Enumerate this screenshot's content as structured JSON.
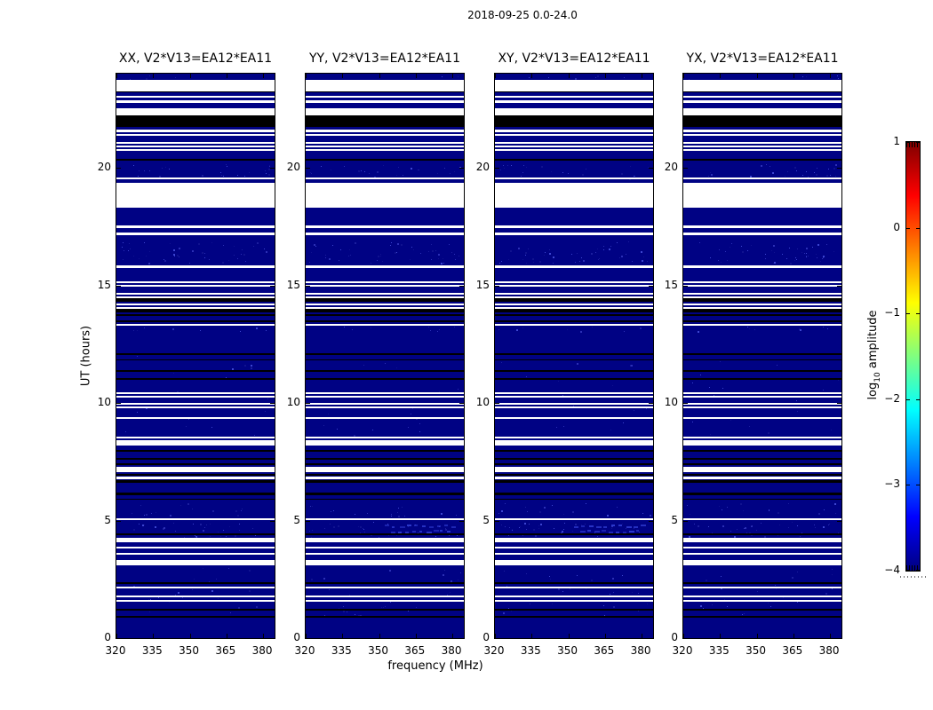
{
  "figure_title": "2018-09-25 0.0-24.0",
  "chart_data": {
    "type": "heatmap",
    "title": "2018-09-25 0.0-24.0",
    "panel_titles": [
      "XX, V2*V13=EA12*EA11",
      "YY, V2*V13=EA12*EA11",
      "XY, V2*V13=EA12*EA11",
      "YX, V2*V13=EA12*EA11"
    ],
    "xlabel": "frequency (MHz)",
    "ylabel": "UT (hours)",
    "x_range": [
      320,
      384.7
    ],
    "y_range": [
      0,
      24
    ],
    "x_ticks": [
      320,
      335,
      350,
      365,
      380
    ],
    "x_tick_labels": [
      "320",
      "335",
      "350",
      "365",
      "380"
    ],
    "y_ticks": [
      0,
      5,
      10,
      15,
      20
    ],
    "y_tick_labels": [
      "0",
      "5",
      "10",
      "15",
      "20"
    ],
    "grid": false,
    "background_value_color": "#000284",
    "flag_colors": {
      "w": "#ffffff",
      "k": "#000000"
    },
    "flagged_rows": [
      {
        "u0": 23.24,
        "u1": 23.73,
        "c": "w"
      },
      {
        "u0": 23.2,
        "u1": 23.25,
        "c": "k"
      },
      {
        "u0": 22.98,
        "u1": 23.06,
        "c": "w"
      },
      {
        "u0": 22.76,
        "u1": 22.87,
        "c": "w"
      },
      {
        "u0": 22.23,
        "u1": 22.53,
        "c": "w"
      },
      {
        "u0": 21.74,
        "u1": 22.23,
        "c": "k"
      },
      {
        "u0": 21.51,
        "u1": 21.63,
        "c": "w"
      },
      {
        "u0": 21.36,
        "u1": 21.44,
        "c": "w"
      },
      {
        "u0": 21.02,
        "u1": 21.1,
        "c": "w"
      },
      {
        "u0": 20.87,
        "u1": 20.95,
        "c": "w"
      },
      {
        "u0": 20.72,
        "u1": 20.8,
        "c": "w"
      },
      {
        "u0": 20.31,
        "u1": 20.38,
        "c": "k"
      },
      {
        "u0": 19.52,
        "u1": 19.6,
        "c": "w"
      },
      {
        "u0": 18.3,
        "u1": 19.35,
        "c": "w"
      },
      {
        "u0": 17.45,
        "u1": 17.53,
        "c": "w"
      },
      {
        "u0": 17.15,
        "u1": 17.26,
        "c": "w"
      },
      {
        "u0": 15.72,
        "u1": 15.84,
        "c": "w"
      },
      {
        "u0": 15.08,
        "u1": 15.16,
        "c": "w"
      },
      {
        "u0": 14.93,
        "u1": 15.01,
        "c": "w"
      },
      {
        "u0": 14.59,
        "u1": 14.67,
        "c": "w"
      },
      {
        "u0": 14.44,
        "u1": 14.52,
        "c": "w"
      },
      {
        "u0": 14.29,
        "u1": 14.44,
        "c": "k"
      },
      {
        "u0": 14.14,
        "u1": 14.22,
        "c": "w"
      },
      {
        "u0": 13.99,
        "u1": 14.07,
        "c": "w"
      },
      {
        "u0": 13.84,
        "u1": 13.99,
        "c": "k"
      },
      {
        "u0": 13.69,
        "u1": 13.76,
        "c": "k"
      },
      {
        "u0": 13.43,
        "u1": 13.5,
        "c": "k"
      },
      {
        "u0": 13.28,
        "u1": 13.35,
        "c": "w"
      },
      {
        "u0": 12.04,
        "u1": 12.11,
        "c": "k"
      },
      {
        "u0": 11.81,
        "u1": 11.85,
        "c": "k"
      },
      {
        "u0": 11.32,
        "u1": 11.4,
        "c": "k"
      },
      {
        "u0": 10.98,
        "u1": 11.06,
        "c": "k"
      },
      {
        "u0": 10.38,
        "u1": 10.46,
        "c": "w"
      },
      {
        "u0": 10.23,
        "u1": 10.31,
        "c": "w"
      },
      {
        "u0": 9.93,
        "u1": 10.01,
        "c": "w"
      },
      {
        "u0": 9.78,
        "u1": 9.86,
        "c": "w"
      },
      {
        "u0": 9.33,
        "u1": 9.4,
        "c": "w"
      },
      {
        "u0": 8.5,
        "u1": 8.58,
        "c": "w"
      },
      {
        "u0": 8.2,
        "u1": 8.43,
        "c": "w"
      },
      {
        "u0": 7.94,
        "u1": 8.01,
        "c": "k"
      },
      {
        "u0": 7.6,
        "u1": 7.67,
        "c": "k"
      },
      {
        "u0": 7.37,
        "u1": 7.45,
        "c": "k"
      },
      {
        "u0": 7.07,
        "u1": 7.3,
        "c": "w"
      },
      {
        "u0": 6.92,
        "u1": 7.0,
        "c": "k"
      },
      {
        "u0": 6.77,
        "u1": 6.85,
        "c": "w"
      },
      {
        "u0": 6.62,
        "u1": 6.7,
        "c": "k"
      },
      {
        "u0": 6.09,
        "u1": 6.17,
        "c": "k"
      },
      {
        "u0": 5.87,
        "u1": 5.94,
        "c": "k"
      },
      {
        "u0": 5.0,
        "u1": 5.08,
        "c": "w"
      },
      {
        "u0": 4.36,
        "u1": 4.44,
        "c": "k"
      },
      {
        "u0": 4.06,
        "u1": 4.25,
        "c": "w"
      },
      {
        "u0": 3.8,
        "u1": 3.87,
        "c": "w"
      },
      {
        "u0": 3.54,
        "u1": 3.61,
        "c": "w"
      },
      {
        "u0": 3.08,
        "u1": 3.31,
        "c": "w"
      },
      {
        "u0": 2.29,
        "u1": 2.37,
        "c": "k"
      },
      {
        "u0": 2.11,
        "u1": 2.18,
        "c": "w"
      },
      {
        "u0": 1.73,
        "u1": 1.81,
        "c": "w"
      },
      {
        "u0": 1.54,
        "u1": 1.62,
        "c": "w"
      },
      {
        "u0": 1.17,
        "u1": 1.24,
        "c": "k"
      },
      {
        "u0": 0.87,
        "u1": 0.94,
        "c": "k"
      }
    ],
    "speckle_regions": [
      {
        "ut_lo": 19.55,
        "ut_hi": 20.15,
        "n": 25
      },
      {
        "ut_lo": 15.95,
        "ut_hi": 16.85,
        "n": 45
      },
      {
        "ut_lo": 23.35,
        "ut_hi": 23.95,
        "n": 10
      },
      {
        "ut_lo": 4.3,
        "ut_hi": 4.95,
        "n": 35
      },
      {
        "ut_lo": 5.15,
        "ut_hi": 5.75,
        "n": 15
      },
      {
        "ut_lo": 0.9,
        "ut_hi": 3.0,
        "n": 30
      },
      {
        "ut_lo": 8.6,
        "ut_hi": 12.0,
        "n": 20
      },
      {
        "ut_lo": 13.05,
        "ut_hi": 13.25,
        "n": 8
      }
    ],
    "speckle_colors": [
      "#10128f",
      "#1b1e9e",
      "#2b2fb5",
      "#3c45d0"
    ],
    "ghost_marks": [
      {
        "panel": 1,
        "ut": 4.8,
        "x0": 0.5,
        "x1": 0.97,
        "n": 10
      },
      {
        "panel": 1,
        "ut": 4.55,
        "x0": 0.54,
        "x1": 0.94,
        "n": 9
      },
      {
        "panel": 2,
        "ut": 4.8,
        "x0": 0.5,
        "x1": 0.97,
        "n": 10
      },
      {
        "panel": 2,
        "ut": 4.55,
        "x0": 0.54,
        "x1": 0.94,
        "n": 9
      }
    ],
    "ghost_color": "#2e3bcf",
    "colorbar": {
      "label_prefix": "log",
      "label_sub": "10",
      "label_suffix": " amplitude",
      "tick_values": [
        1,
        0,
        -1,
        -2,
        -3,
        -4
      ],
      "tick_labels": [
        "1",
        "0",
        "−1",
        "−2",
        "−3",
        "−4"
      ],
      "range": [
        -4,
        1
      ],
      "colormap": "jet",
      "gradient_stops": [
        {
          "pos": 0.0,
          "color": "#000080"
        },
        {
          "pos": 0.125,
          "color": "#0000ff"
        },
        {
          "pos": 0.375,
          "color": "#00ffff"
        },
        {
          "pos": 0.625,
          "color": "#ffff00"
        },
        {
          "pos": 0.875,
          "color": "#ff0000"
        },
        {
          "pos": 1.0,
          "color": "#800000"
        }
      ]
    }
  }
}
